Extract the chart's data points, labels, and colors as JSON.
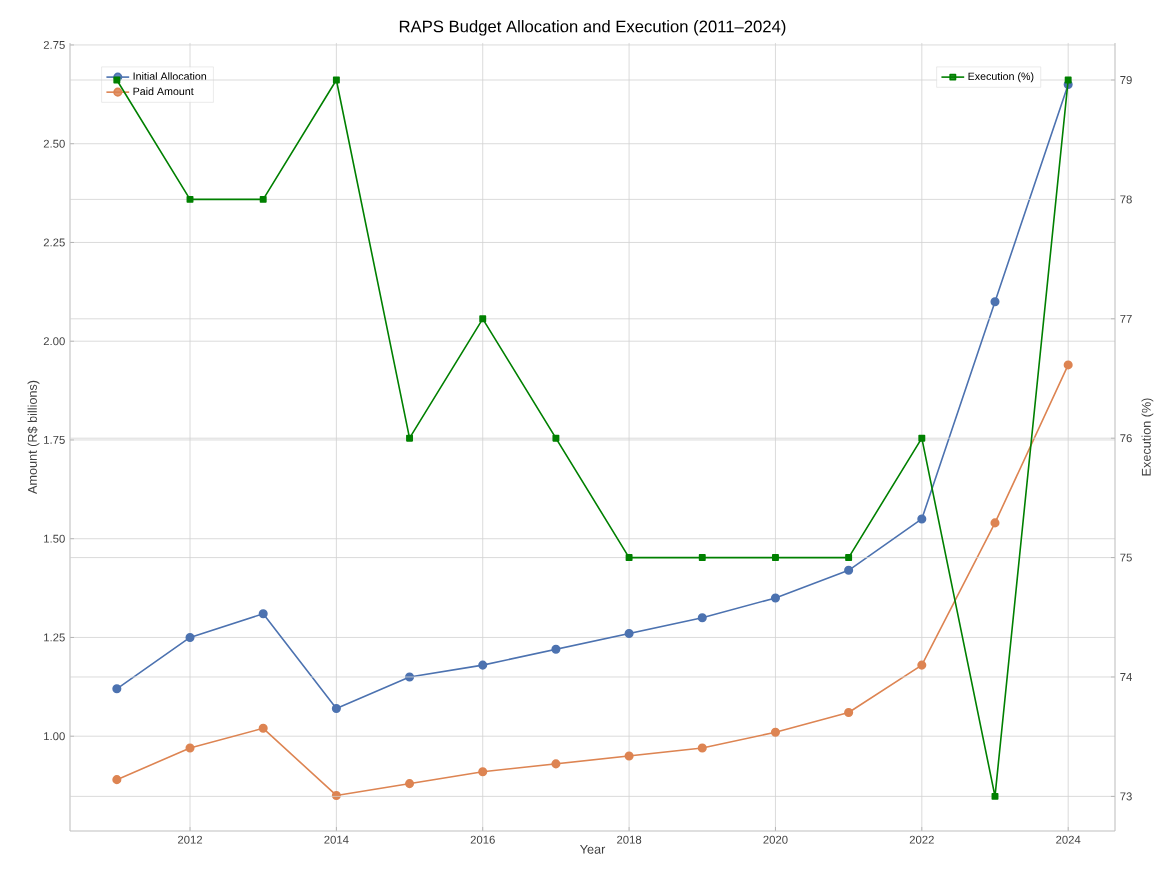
{
  "chart_data": {
    "type": "line",
    "title": "RAPS Budget Allocation and Execution (2011–2024)",
    "xlabel": "Year",
    "ylabel": "Amount (R$ billions)",
    "y2label": "Execution (%)",
    "x": [
      2011,
      2012,
      2013,
      2014,
      2015,
      2016,
      2017,
      2018,
      2019,
      2020,
      2021,
      2022,
      2023,
      2024
    ],
    "xlim": [
      2010.36,
      2024.64
    ],
    "xticks": [
      2012,
      2014,
      2016,
      2018,
      2020,
      2022,
      2024
    ],
    "ylim": [
      0.76,
      2.755
    ],
    "yticks": [
      {
        "value": 1.0,
        "label": "1.00"
      },
      {
        "value": 1.25,
        "label": "1.25"
      },
      {
        "value": 1.5,
        "label": "1.50"
      },
      {
        "value": 1.75,
        "label": "1.75"
      },
      {
        "value": 2.0,
        "label": "2.00"
      },
      {
        "value": 2.25,
        "label": "2.25"
      },
      {
        "value": 2.5,
        "label": "2.50"
      },
      {
        "value": 2.75,
        "label": "2.75"
      }
    ],
    "y2lim": [
      72.71,
      79.31
    ],
    "y2ticks": [
      73,
      74,
      75,
      76,
      77,
      78,
      79
    ],
    "grid": true,
    "legend": "top left",
    "series": [
      {
        "name": "Initial Allocation",
        "color": "#4c72b0",
        "marker": "circle",
        "values": [
          1.12,
          1.25,
          1.31,
          1.07,
          1.15,
          1.18,
          1.22,
          1.26,
          1.3,
          1.35,
          1.42,
          1.55,
          2.1,
          2.65
        ]
      },
      {
        "name": "Paid Amount",
        "color": "#dd8452",
        "marker": "circle",
        "values": [
          0.89,
          0.97,
          1.02,
          0.85,
          0.88,
          0.91,
          0.93,
          0.95,
          0.97,
          1.01,
          1.06,
          1.18,
          1.54,
          1.94
        ]
      },
      {
        "name": "Execution (%)",
        "color": "#008000",
        "marker": "square",
        "axis": "y2",
        "values": [
          79,
          78,
          78,
          79,
          76,
          77,
          76,
          75,
          75,
          75,
          75,
          76,
          73,
          79
        ]
      }
    ]
  }
}
